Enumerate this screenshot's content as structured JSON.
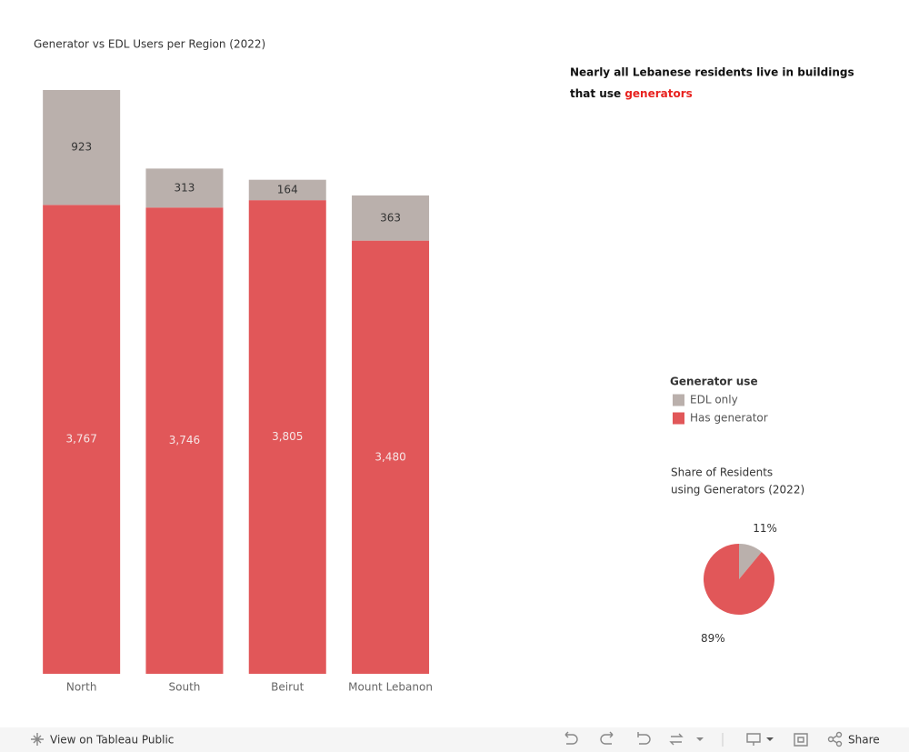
{
  "chart_data": [
    {
      "type": "stacked-bar",
      "title": "Generator vs EDL Users per Region (2022)",
      "categories": [
        "North",
        "South",
        "Beirut",
        "Mount Lebanon"
      ],
      "series": [
        {
          "name": "Has generator",
          "color": "#e15759",
          "values": [
            3767,
            3746,
            3805,
            3480
          ],
          "value_labels": [
            "3,767",
            "3,746",
            "3,805",
            "3,480"
          ]
        },
        {
          "name": "EDL only",
          "color": "#bab0ac",
          "values": [
            923,
            313,
            164,
            363
          ],
          "value_labels": [
            "923",
            "313",
            "164",
            "363"
          ]
        }
      ],
      "legend_title": "Generator use"
    },
    {
      "type": "pie",
      "title": [
        "Share of Residents",
        "using Generators (2022)"
      ],
      "values": [
        11,
        89
      ],
      "value_labels": [
        "11%",
        "89%"
      ],
      "colors": [
        "#bab0ac",
        "#e15759"
      ]
    }
  ],
  "headline": {
    "text": [
      "Nearly all Lebanese residents live in buildings",
      "that use"
    ],
    "highlight": "generators",
    "highlight_color": "#e8221f"
  },
  "toolbar": {
    "view_link": "View on Tableau Public",
    "share": "Share"
  }
}
